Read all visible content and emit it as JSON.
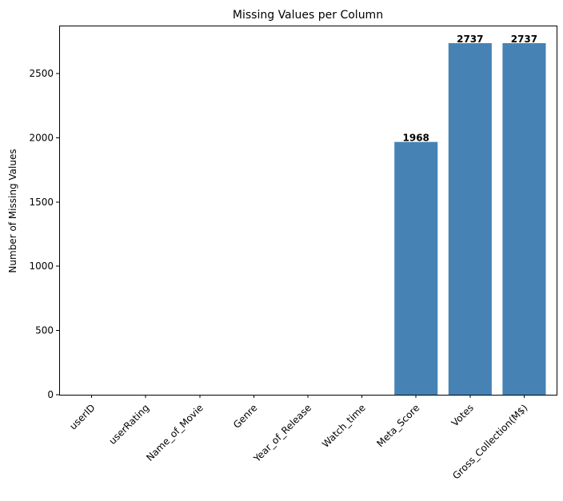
{
  "chart_data": {
    "type": "bar",
    "title": "Missing Values per Column",
    "xlabel": "",
    "ylabel": "Number of Missing Values",
    "categories": [
      "userID",
      "userRating",
      "Name_of_Movie",
      "Genre",
      "Year_of_Release",
      "Watch_time",
      "Meta_Score",
      "Votes",
      "Gross_Collection(M$)"
    ],
    "values": [
      0,
      0,
      0,
      0,
      0,
      0,
      1968,
      2737,
      2737
    ],
    "data_labels": [
      "",
      "",
      "",
      "",
      "",
      "",
      "1968",
      "2737",
      "2737"
    ],
    "ylim": [
      0,
      2874
    ],
    "yticks": [
      0,
      500,
      1000,
      1500,
      2000,
      2500
    ],
    "ytick_labels": [
      "0",
      "500",
      "1000",
      "1500",
      "2000",
      "2500"
    ],
    "bar_color": "#4682b4",
    "grid": false
  }
}
